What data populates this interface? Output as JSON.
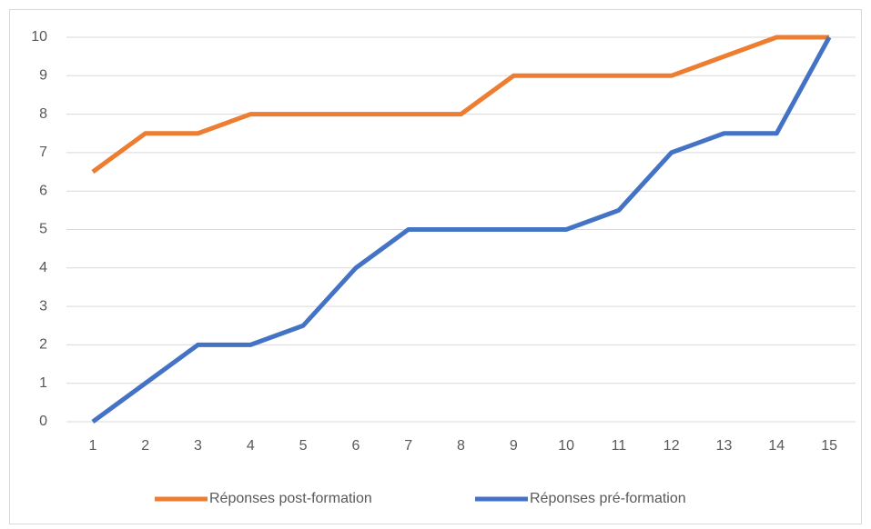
{
  "chart_data": {
    "type": "line",
    "categories": [
      "1",
      "2",
      "3",
      "4",
      "5",
      "6",
      "7",
      "8",
      "9",
      "10",
      "11",
      "12",
      "13",
      "14",
      "15"
    ],
    "series": [
      {
        "name": "Réponses post-formation",
        "color": "#ED7D31",
        "values": [
          6.5,
          7.5,
          7.5,
          8,
          8,
          8,
          8,
          8,
          9,
          9,
          9,
          9,
          9.5,
          10,
          10
        ]
      },
      {
        "name": "Réponses pré-formation",
        "color": "#4472C4",
        "values": [
          0,
          1,
          2,
          2,
          2.5,
          4,
          5,
          5,
          5,
          5,
          5.5,
          7,
          7.5,
          7.5,
          10
        ]
      }
    ],
    "ylim": [
      0,
      10
    ],
    "yticks": [
      0,
      1,
      2,
      3,
      4,
      5,
      6,
      7,
      8,
      9,
      10
    ],
    "grid": true,
    "legend": "bottom"
  }
}
